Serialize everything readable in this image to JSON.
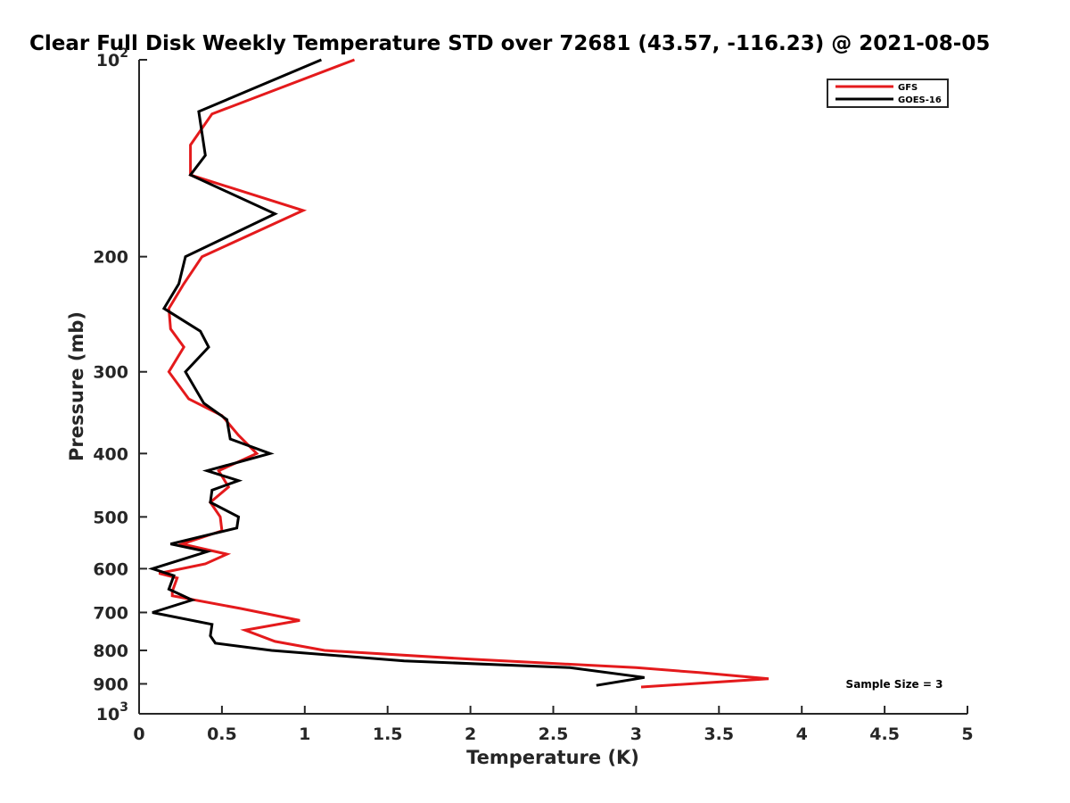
{
  "chart_data": {
    "type": "line",
    "title": "Clear Full Disk Weekly Temperature STD over 72681 (43.57, -116.23) @ 2021-08-05",
    "xlabel": "Temperature (K)",
    "ylabel": "Pressure (mb)",
    "xlim": [
      0,
      5
    ],
    "ylim": [
      1000,
      100
    ],
    "yscale": "log",
    "x_ticks": [
      "0",
      "0.5",
      "1",
      "1.5",
      "2",
      "2.5",
      "3",
      "3.5",
      "4",
      "4.5",
      "5"
    ],
    "y_ticks": [
      {
        "value": 100,
        "base": "10",
        "exp": "2"
      },
      {
        "value": 200,
        "label": "200"
      },
      {
        "value": 300,
        "label": "300"
      },
      {
        "value": 400,
        "label": "400"
      },
      {
        "value": 500,
        "label": "500"
      },
      {
        "value": 600,
        "label": "600"
      },
      {
        "value": 700,
        "label": "700"
      },
      {
        "value": 800,
        "label": "800"
      },
      {
        "value": 900,
        "label": "900"
      },
      {
        "value": 1000,
        "base": "10",
        "exp": "3"
      }
    ],
    "grid": false,
    "legend_position": "top-right",
    "annotation": "Sample Size = 3",
    "series": [
      {
        "name": "GFS",
        "color": "#e41a1c",
        "points": [
          [
            1.3,
            100
          ],
          [
            0.44,
            121
          ],
          [
            0.31,
            135
          ],
          [
            0.31,
            150
          ],
          [
            0.99,
            170
          ],
          [
            0.38,
            200
          ],
          [
            0.27,
            220
          ],
          [
            0.18,
            240
          ],
          [
            0.19,
            258
          ],
          [
            0.27,
            275
          ],
          [
            0.18,
            300
          ],
          [
            0.3,
            330
          ],
          [
            0.5,
            350
          ],
          [
            0.6,
            375
          ],
          [
            0.71,
            400
          ],
          [
            0.48,
            425
          ],
          [
            0.54,
            450
          ],
          [
            0.43,
            475
          ],
          [
            0.49,
            500
          ],
          [
            0.5,
            525
          ],
          [
            0.26,
            550
          ],
          [
            0.53,
            570
          ],
          [
            0.4,
            590
          ],
          [
            0.12,
            610
          ],
          [
            0.23,
            620
          ],
          [
            0.2,
            650
          ],
          [
            0.2,
            660
          ],
          [
            0.61,
            690
          ],
          [
            0.97,
            720
          ],
          [
            0.64,
            745
          ],
          [
            0.82,
            775
          ],
          [
            1.12,
            800
          ],
          [
            2.0,
            825
          ],
          [
            3.0,
            850
          ],
          [
            3.38,
            865
          ],
          [
            3.8,
            884
          ],
          [
            3.03,
            910
          ]
        ]
      },
      {
        "name": "GOES-16",
        "color": "#000000",
        "points": [
          [
            1.1,
            100
          ],
          [
            0.36,
            120
          ],
          [
            0.4,
            140
          ],
          [
            0.31,
            150
          ],
          [
            0.82,
            172
          ],
          [
            0.28,
            200
          ],
          [
            0.24,
            220
          ],
          [
            0.15,
            240
          ],
          [
            0.37,
            260
          ],
          [
            0.42,
            275
          ],
          [
            0.28,
            300
          ],
          [
            0.39,
            335
          ],
          [
            0.53,
            355
          ],
          [
            0.55,
            380
          ],
          [
            0.79,
            400
          ],
          [
            0.41,
            425
          ],
          [
            0.6,
            440
          ],
          [
            0.44,
            455
          ],
          [
            0.43,
            475
          ],
          [
            0.6,
            500
          ],
          [
            0.59,
            520
          ],
          [
            0.19,
            550
          ],
          [
            0.41,
            565
          ],
          [
            0.08,
            600
          ],
          [
            0.21,
            615
          ],
          [
            0.18,
            645
          ],
          [
            0.32,
            670
          ],
          [
            0.08,
            700
          ],
          [
            0.44,
            730
          ],
          [
            0.43,
            760
          ],
          [
            0.46,
            780
          ],
          [
            0.8,
            800
          ],
          [
            1.6,
            830
          ],
          [
            2.6,
            850
          ],
          [
            3.05,
            880
          ],
          [
            2.76,
            905
          ]
        ]
      }
    ]
  }
}
